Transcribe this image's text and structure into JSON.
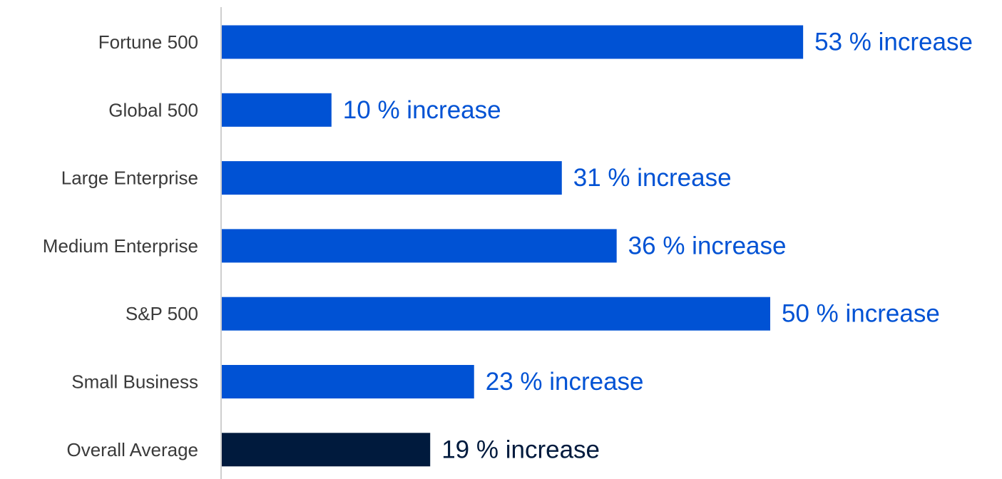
{
  "chart_data": {
    "type": "bar",
    "orientation": "horizontal",
    "categories": [
      "Fortune 500",
      "Global 500",
      "Large Enterprise",
      "Medium Enterprise",
      "S&P 500",
      "Small Business",
      "Overall Average"
    ],
    "values": [
      53,
      10,
      31,
      36,
      50,
      23,
      19
    ],
    "value_labels": [
      "53 % increase",
      "10 % increase",
      "31 % increase",
      "36 % increase",
      "50 % increase",
      "23 % increase",
      "19 % increase"
    ],
    "xlim": [
      0,
      60
    ],
    "grid": false,
    "colors": {
      "bar": "#0052d4",
      "highlight_bar": "#001a3d",
      "label": "#0052d4",
      "highlight_label": "#001a3d",
      "axis": "#bfbfbf",
      "category_text": "#3a3a3a"
    },
    "highlight_index": 6
  }
}
